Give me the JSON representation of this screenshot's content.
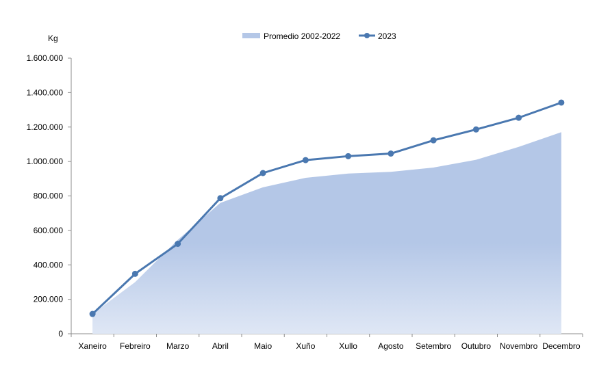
{
  "chart_data": {
    "type": "area",
    "ylabel": "Kg",
    "categories": [
      "Xaneiro",
      "Febreiro",
      "Marzo",
      "Abril",
      "Maio",
      "Xuño",
      "Xullo",
      "Agosto",
      "Setembro",
      "Outubro",
      "Novembro",
      "Decembro"
    ],
    "ylim": [
      0,
      1600000
    ],
    "yticks": [
      0,
      200000,
      400000,
      600000,
      800000,
      1000000,
      1200000,
      1400000,
      1600000
    ],
    "ytick_labels": [
      "0",
      "200.000",
      "400.000",
      "600.000",
      "800.000",
      "1.000.000",
      "1.200.000",
      "1.400.000",
      "1.600.000"
    ],
    "legend_position": "top",
    "grid": false,
    "series": [
      {
        "name": "Promedio 2002-2022",
        "kind": "area",
        "color": "#b4c7e7",
        "values": [
          115000,
          300000,
          545000,
          760000,
          850000,
          905000,
          930000,
          940000,
          965000,
          1010000,
          1085000,
          1170000
        ]
      },
      {
        "name": "2023",
        "kind": "line",
        "color": "#4a78b0",
        "values": [
          115000,
          348000,
          522000,
          787000,
          933000,
          1008000,
          1031000,
          1046000,
          1123000,
          1186000,
          1254000,
          1342000
        ]
      }
    ]
  }
}
